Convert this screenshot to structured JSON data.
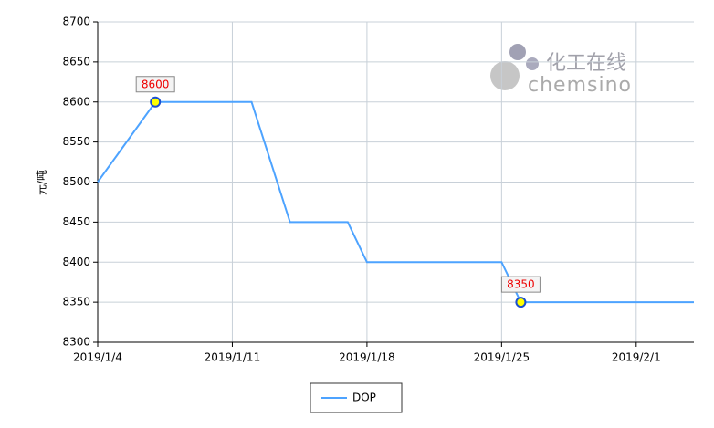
{
  "chart_data": {
    "type": "line",
    "y_label": "元/吨",
    "x": [
      "2019/1/4",
      "2019/1/7",
      "2019/1/12",
      "2019/1/14",
      "2019/1/17",
      "2019/1/18",
      "2019/1/25",
      "2019/1/26",
      "2019/2/4"
    ],
    "series": [
      {
        "name": "DOP",
        "color": "#4da3ff",
        "values": [
          8500,
          8600,
          8600,
          8450,
          8450,
          8400,
          8400,
          8350,
          8350
        ]
      }
    ],
    "labeled_points": [
      1,
      7
    ],
    "xlim": [
      "2019/1/4",
      "2019/2/4"
    ],
    "xticks": [
      "2019/1/4",
      "2019/1/11",
      "2019/1/18",
      "2019/1/25",
      "2019/2/1"
    ],
    "ylim": [
      8300,
      8700
    ],
    "yticks": [
      8300,
      8350,
      8400,
      8450,
      8500,
      8550,
      8600,
      8650,
      8700
    ],
    "grid": true,
    "legend": "bottom",
    "watermark": {
      "cn": "化工在线",
      "en": "chemsino"
    }
  }
}
